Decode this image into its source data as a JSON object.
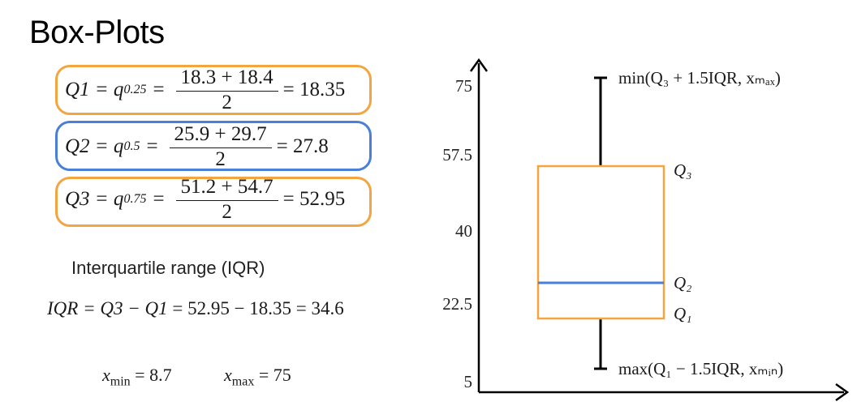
{
  "title": "Box-Plots",
  "colors": {
    "orange": "#f3a640",
    "blue": "#4a7fd8",
    "ink": "#1a1a1a"
  },
  "q1": {
    "lhs": "Q1 = q",
    "sub": "0.25",
    "num": "18.3 + 18.4",
    "den": "2",
    "result": "= 18.35"
  },
  "q2": {
    "lhs": "Q2 = q",
    "sub": "0.5",
    "num": "25.9 + 29.7",
    "den": "2",
    "result": "= 27.8"
  },
  "q3": {
    "lhs": "Q3 = q",
    "sub": "0.75",
    "num": "51.2 + 54.7",
    "den": "2",
    "result": "= 52.95"
  },
  "iqr_heading": "Interquartile range (IQR)",
  "iqr_formula": {
    "lhs": "IQR = Q3 − Q1",
    "rhs": "= 52.95 − 18.35 = 34.6"
  },
  "xmin": {
    "label": "x",
    "sub": "min",
    "value": "= 8.7"
  },
  "xmax": {
    "label": "x",
    "sub": "max",
    "value": "= 75"
  },
  "chart_data": {
    "type": "box",
    "yticks": [
      "75",
      "57.5",
      "40",
      "22.5",
      "5"
    ],
    "box": {
      "whisker_low": 8.7,
      "q1": 18.35,
      "median": 27.8,
      "q3": 52.95,
      "whisker_high": 75
    },
    "labels": {
      "upper": "min(Q₃ + 1.5IQR, xₘₐₓ)",
      "q3": "Q₃",
      "q2": "Q₂",
      "q1": "Q₁",
      "lower": "max(Q₁ − 1.5IQR, xₘᵢₙ)"
    }
  }
}
